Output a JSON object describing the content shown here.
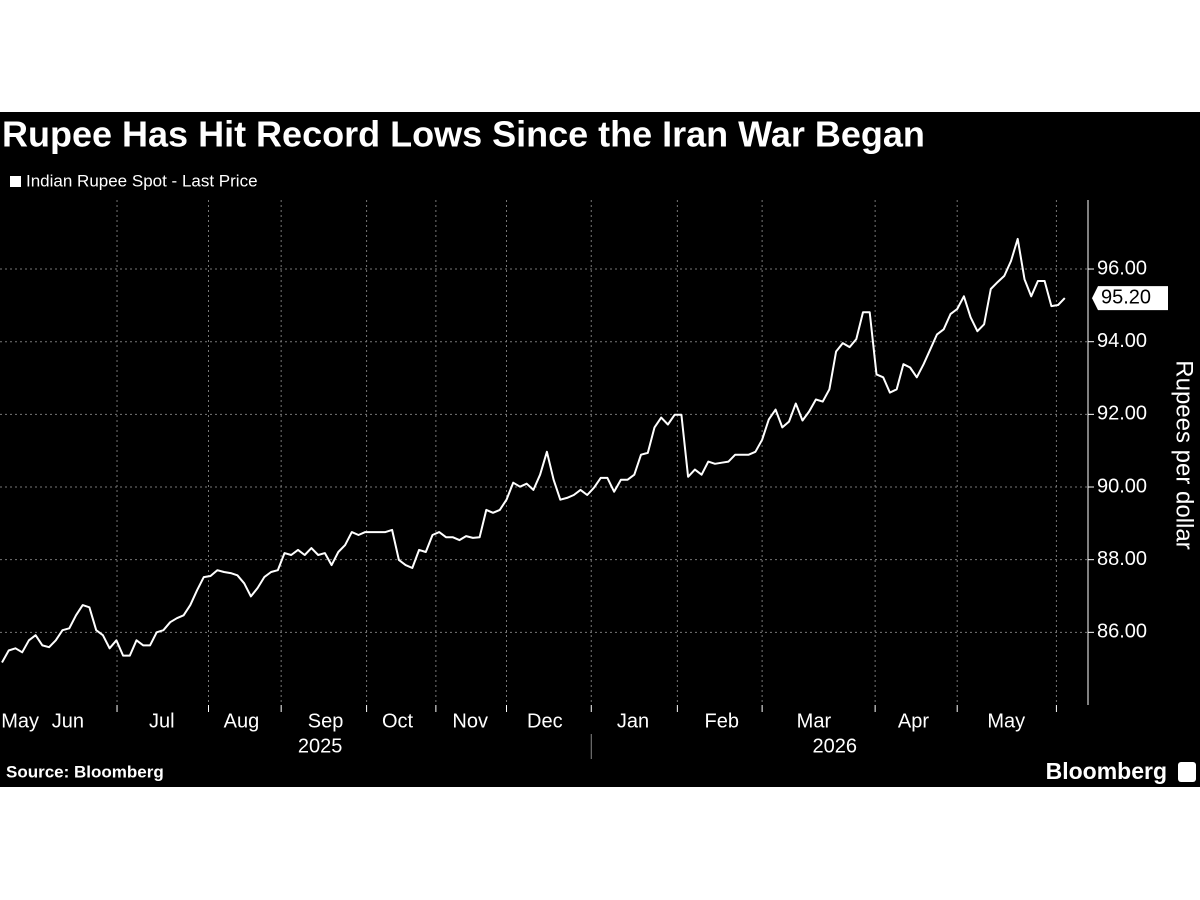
{
  "chart_data": {
    "type": "line",
    "title": "Rupee Has Hit Record Lows Since the Iran War Began",
    "y_axis_label": "Rupees per dollar",
    "source": "Source: Bloomberg",
    "brand": "Bloomberg",
    "series": [
      {
        "name": "Indian Rupee Spot - Last Price",
        "color": "#ffffff",
        "values": [
          85.17,
          85.5,
          85.56,
          85.45,
          85.78,
          85.92,
          85.64,
          85.59,
          85.78,
          86.06,
          86.11,
          86.47,
          86.75,
          86.69,
          86.06,
          85.92,
          85.56,
          85.78,
          85.36,
          85.36,
          85.78,
          85.64,
          85.64,
          86.0,
          86.06,
          86.28,
          86.39,
          86.47,
          86.75,
          87.16,
          87.52,
          87.55,
          87.71,
          87.66,
          87.63,
          87.57,
          87.35,
          86.99,
          87.22,
          87.52,
          87.66,
          87.71,
          88.18,
          88.13,
          88.27,
          88.13,
          88.32,
          88.13,
          88.18,
          87.85,
          88.21,
          88.4,
          88.76,
          88.68,
          88.76,
          88.76,
          88.76,
          88.76,
          88.82,
          87.99,
          87.85,
          87.77,
          88.27,
          88.21,
          88.68,
          88.76,
          88.62,
          88.62,
          88.54,
          88.65,
          88.6,
          88.62,
          89.37,
          89.29,
          89.37,
          89.65,
          90.12,
          90.01,
          90.09,
          89.92,
          90.34,
          90.97,
          90.2,
          89.65,
          89.7,
          89.78,
          89.92,
          89.78,
          89.98,
          90.25,
          90.25,
          89.87,
          90.2,
          90.2,
          90.34,
          90.89,
          90.94,
          91.64,
          91.91,
          91.72,
          91.99,
          91.99,
          90.28,
          90.48,
          90.34,
          90.7,
          90.64,
          90.67,
          90.7,
          90.89,
          90.89,
          90.89,
          90.97,
          91.3,
          91.86,
          92.13,
          91.64,
          91.8,
          92.3,
          91.83,
          92.08,
          92.41,
          92.35,
          92.69,
          93.73,
          93.96,
          93.85,
          94.07,
          94.81,
          94.81,
          93.1,
          93.02,
          92.6,
          92.69,
          93.38,
          93.29,
          93.02,
          93.38,
          93.79,
          94.2,
          94.34,
          94.76,
          94.9,
          95.25,
          94.67,
          94.29,
          94.48,
          95.45,
          95.64,
          95.81,
          96.22,
          96.83,
          95.72,
          95.25,
          95.67,
          95.67,
          94.98,
          95.01,
          95.2
        ]
      }
    ],
    "last_value_label": "95.20",
    "xlim": [
      0,
      161
    ],
    "xticks": [
      {
        "value": 2.7,
        "label": "May"
      },
      {
        "value": 9.8,
        "label": "Jun"
      },
      {
        "value": 23.75,
        "label": "Jul"
      },
      {
        "value": 35.6,
        "label": "Aug"
      },
      {
        "value": 48.1,
        "label": "Sep"
      },
      {
        "value": 58.8,
        "label": "Oct"
      },
      {
        "value": 69.6,
        "label": "Nov"
      },
      {
        "value": 80.7,
        "label": "Dec"
      },
      {
        "value": 93.8,
        "label": "Jan"
      },
      {
        "value": 107,
        "label": "Feb"
      },
      {
        "value": 120.7,
        "label": "Mar"
      },
      {
        "value": 135.5,
        "label": "Apr"
      },
      {
        "value": 149.3,
        "label": "May"
      }
    ],
    "xgrid": [
      17.1,
      30.7,
      41.5,
      54.2,
      64.5,
      75,
      87.6,
      100.4,
      113,
      129.8,
      142,
      156.75
    ],
    "year_labels": [
      {
        "value": 47.3,
        "label": "2025"
      },
      {
        "value": 123.8,
        "label": "2026"
      }
    ],
    "year_divider": 87.6,
    "ylim": [
      84,
      97.9
    ],
    "yticks": [
      {
        "value": 86,
        "label": "86.00"
      },
      {
        "value": 88,
        "label": "88.00"
      },
      {
        "value": 90,
        "label": "90.00"
      },
      {
        "value": 92,
        "label": "92.00"
      },
      {
        "value": 94,
        "label": "94.00"
      },
      {
        "value": 96,
        "label": "96.00"
      }
    ],
    "grid": true
  }
}
